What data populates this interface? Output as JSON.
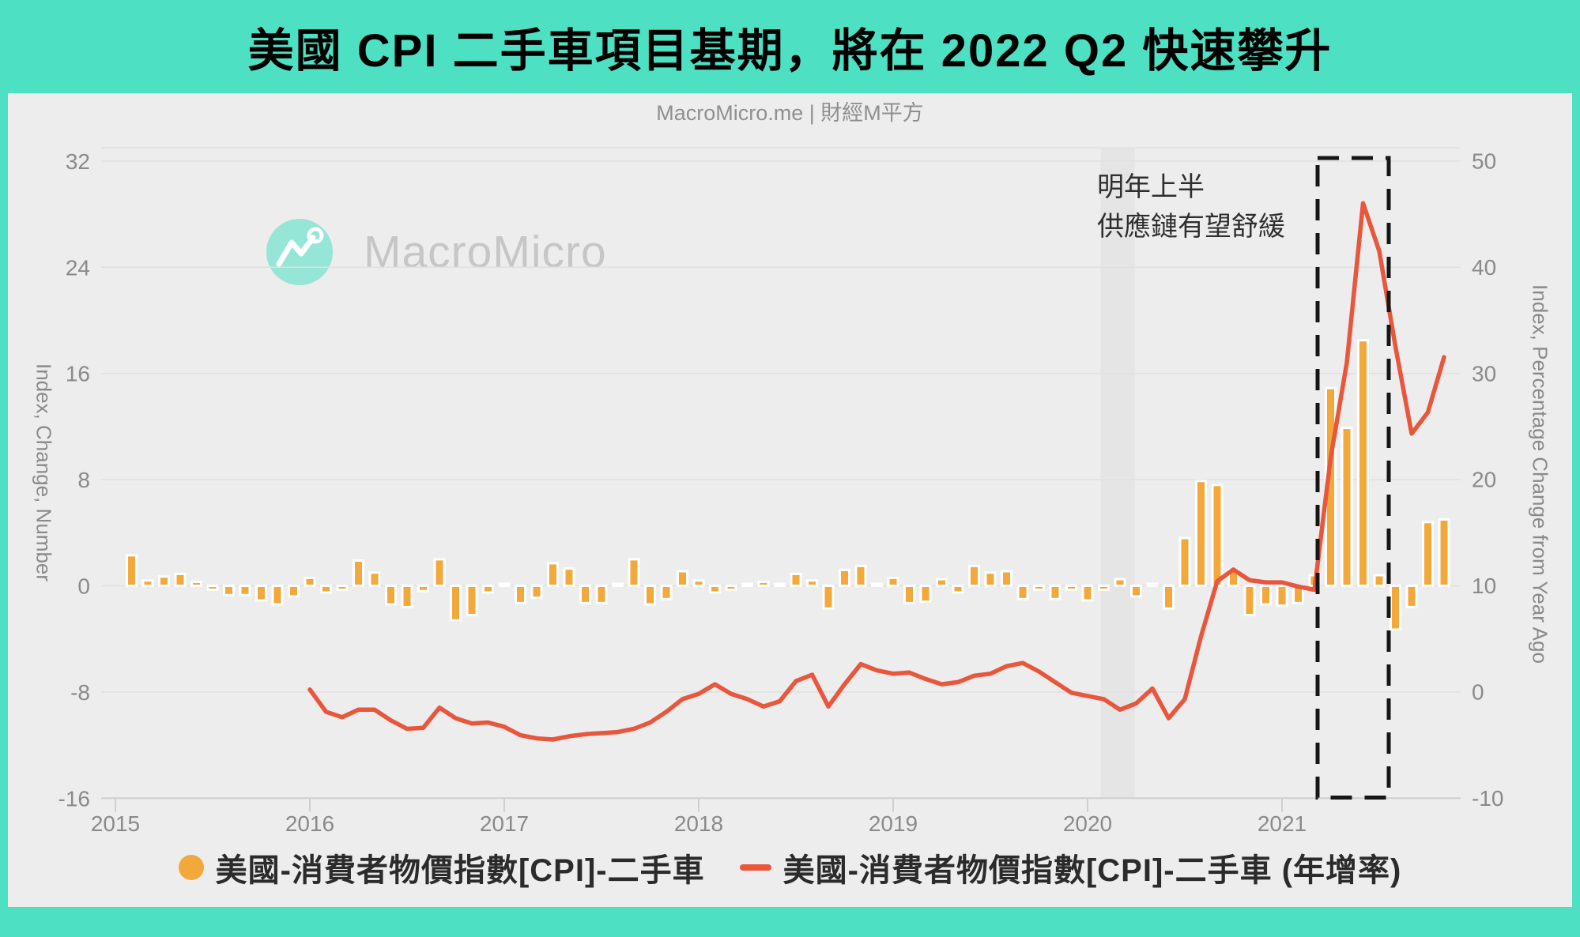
{
  "header": {
    "title": "美國 CPI 二手車項目基期，將在 2022 Q2 快速攀升",
    "source": "MacroMicro.me | 財經M平方"
  },
  "watermark": {
    "text": "MacroMicro"
  },
  "colors": {
    "frame_teal": "#4DE0C2",
    "panel_bg": "#EDEDED",
    "bar": "#F3A83B",
    "line": "#E8563C",
    "grid": "#E0E0E0",
    "axis_line": "#CFCFCF",
    "tick_text": "#8A8A8A",
    "highlight_box": "#161616",
    "recession_band": "#E3E3E3",
    "watermark_logo": "#4DE0C2",
    "watermark_text": "#C6C6C6"
  },
  "chart_data": {
    "type": "combo",
    "title": "美國 CPI 二手車項目基期，將在 2022 Q2 快速攀升",
    "x_axis": {
      "tick_labels": [
        "2015",
        "2016",
        "2017",
        "2018",
        "2019",
        "2020",
        "2021"
      ],
      "start_year": 2015,
      "unit": "month"
    },
    "left_axis": {
      "title": "Index, Change, Number",
      "ticks": [
        32,
        24,
        16,
        8,
        0,
        -8,
        -16
      ],
      "range": [
        -16.1,
        33.0
      ]
    },
    "right_axis": {
      "title": "Index, Percentage Change from Year Ago",
      "ticks": [
        50,
        40,
        30,
        20,
        10,
        0,
        -10
      ],
      "range": [
        -10.1,
        51.2
      ]
    },
    "legend_position": "bottom",
    "grid": true,
    "annotation": {
      "line1": "明年上半",
      "line2": "供應鏈有望舒緩"
    },
    "highlight_box": {
      "start_month": "2021-03",
      "end_month": "2021-07"
    },
    "recession_band": {
      "start_month": "2020-02",
      "end_month": "2020-04"
    },
    "series": [
      {
        "name": "美國-消費者物價指數[CPI]-二手車",
        "type": "bar",
        "axis": "left",
        "color": "#F3A83B",
        "start_month": "2015-02",
        "values": [
          2.3,
          0.4,
          0.7,
          0.9,
          0.3,
          -0.3,
          -0.7,
          -0.7,
          -1.1,
          -1.4,
          -0.8,
          0.6,
          -0.5,
          -0.3,
          1.9,
          1.0,
          -1.4,
          -1.6,
          -0.4,
          2.0,
          -2.6,
          -2.2,
          -0.5,
          0.0,
          -1.3,
          -0.9,
          1.7,
          1.3,
          -1.3,
          -1.3,
          0.0,
          2.0,
          -1.4,
          -1.0,
          1.1,
          0.4,
          -0.5,
          -0.3,
          0.0,
          0.3,
          0.0,
          0.9,
          0.4,
          -1.7,
          1.2,
          1.5,
          0.0,
          0.6,
          -1.3,
          -1.2,
          0.5,
          -0.5,
          1.5,
          1.0,
          1.1,
          -1.0,
          -0.3,
          -1.0,
          -0.3,
          -1.1,
          -0.3,
          0.5,
          -0.8,
          0.0,
          -1.7,
          3.6,
          7.9,
          7.6,
          1.2,
          -2.2,
          -1.4,
          -1.5,
          -1.3,
          0.8,
          14.9,
          11.9,
          18.5,
          0.8,
          -3.3,
          -1.6,
          4.8,
          5.0
        ]
      },
      {
        "name": "美國-消費者物價指數[CPI]-二手車 (年增率)",
        "type": "line",
        "axis": "right",
        "color": "#E8563C",
        "start_month": "2016-01",
        "values": [
          0.2,
          -1.9,
          -2.4,
          -1.7,
          -1.7,
          -2.7,
          -3.5,
          -3.4,
          -1.5,
          -2.5,
          -3.0,
          -2.9,
          -3.3,
          -4.1,
          -4.4,
          -4.5,
          -4.2,
          -4.0,
          -3.9,
          -3.8,
          -3.5,
          -2.9,
          -1.9,
          -0.7,
          -0.2,
          0.7,
          -0.2,
          -0.7,
          -1.4,
          -0.9,
          1.0,
          1.6,
          -1.4,
          0.7,
          2.6,
          2.0,
          1.7,
          1.8,
          1.2,
          0.7,
          0.9,
          1.5,
          1.7,
          2.4,
          2.7,
          1.9,
          0.9,
          -0.1,
          -0.4,
          -0.7,
          -1.7,
          -1.1,
          0.3,
          -2.5,
          -0.7,
          5.2,
          10.4,
          11.5,
          10.5,
          10.3,
          10.3,
          9.9,
          9.6,
          22.0,
          31.0,
          46.0,
          41.5,
          32.5,
          24.3,
          26.3,
          31.5
        ]
      }
    ]
  }
}
